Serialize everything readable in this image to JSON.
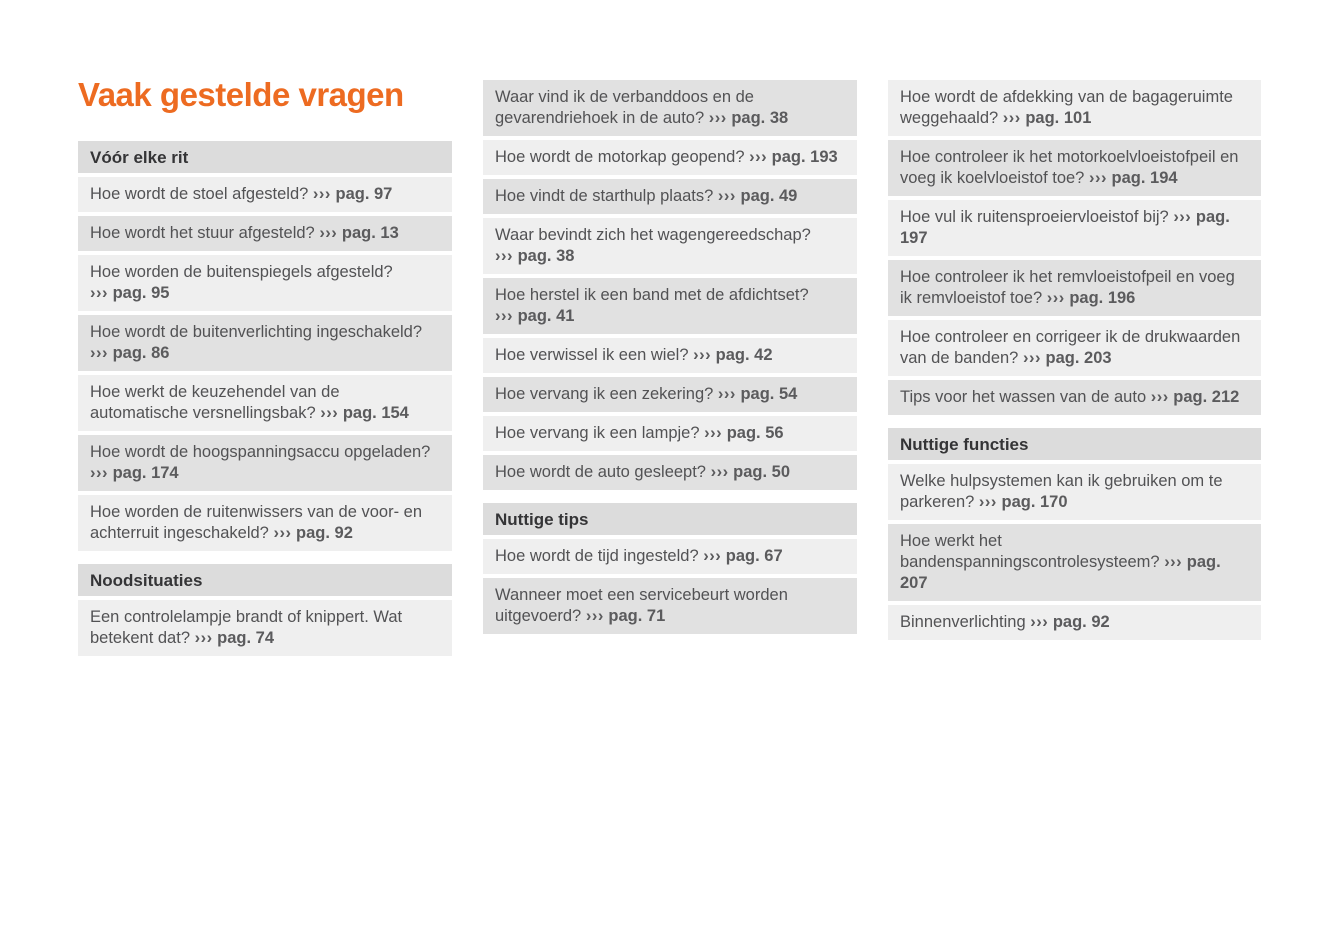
{
  "page_title": "Vaak gestelde vragen",
  "ref_arrow": "›››",
  "colors": {
    "accent_orange": "#ED6B21",
    "section_header_bg": "#DCDCDC",
    "row_light_bg": "#EFEFEF",
    "row_dark_bg": "#E1E1E1",
    "question_text": "#525254",
    "heading_text": "#343436",
    "ref_text": "#5B5B5D"
  },
  "columns": [
    {
      "sections": [
        {
          "heading": "Vóór elke rit",
          "items": [
            {
              "question": "Hoe wordt de stoel afgesteld?",
              "ref": "pag. 97",
              "shade": "light"
            },
            {
              "question": "Hoe wordt het stuur afgesteld?",
              "ref": "pag. 13",
              "shade": "dark"
            },
            {
              "question": "Hoe worden de buitenspiegels afgesteld?",
              "ref": "pag. 95",
              "shade": "light"
            },
            {
              "question": "Hoe wordt de buitenverlichting ingeschakeld?",
              "ref": "pag. 86",
              "shade": "dark"
            },
            {
              "question": "Hoe werkt de keuzehendel van de automatische versnellingsbak?",
              "ref": "pag. 154",
              "shade": "light"
            },
            {
              "question": "Hoe wordt de hoogspanningsaccu opgeladen?",
              "ref": "pag. 174",
              "shade": "dark"
            },
            {
              "question": "Hoe worden de ruitenwissers van de voor- en achterruit ingeschakeld?",
              "ref": "pag. 92",
              "shade": "light"
            }
          ]
        },
        {
          "heading": "Noodsituaties",
          "items": [
            {
              "question": "Een controlelampje brandt of knippert. Wat betekent dat?",
              "ref": "pag. 74",
              "shade": "light"
            }
          ]
        }
      ]
    },
    {
      "sections": [
        {
          "heading": null,
          "items": [
            {
              "question": "Waar vind ik de verbanddoos en de gevarendriehoek in de auto?",
              "ref": "pag. 38",
              "shade": "dark"
            },
            {
              "question": "Hoe wordt de motorkap geopend?",
              "ref": "pag. 193",
              "shade": "light"
            },
            {
              "question": "Hoe vindt de starthulp plaats?",
              "ref": "pag. 49",
              "shade": "dark"
            },
            {
              "question": "Waar bevindt zich het wagengereedschap?",
              "ref": "pag. 38",
              "shade": "light"
            },
            {
              "question": "Hoe herstel ik een band met de afdichtset?",
              "ref": "pag. 41",
              "shade": "dark"
            },
            {
              "question": "Hoe verwissel ik een wiel?",
              "ref": "pag. 42",
              "shade": "light"
            },
            {
              "question": "Hoe vervang ik een zekering?",
              "ref": "pag. 54",
              "shade": "dark"
            },
            {
              "question": "Hoe vervang ik een lampje?",
              "ref": "pag. 56",
              "shade": "light"
            },
            {
              "question": "Hoe wordt de auto gesleept?",
              "ref": "pag. 50",
              "shade": "dark"
            }
          ]
        },
        {
          "heading": "Nuttige tips",
          "items": [
            {
              "question": "Hoe wordt de tijd ingesteld?",
              "ref": "pag. 67",
              "shade": "light"
            },
            {
              "question": "Wanneer moet een servicebeurt worden uitgevoerd?",
              "ref": "pag. 71",
              "shade": "dark"
            }
          ]
        }
      ]
    },
    {
      "sections": [
        {
          "heading": null,
          "items": [
            {
              "question": "Hoe wordt de afdekking van de bagageruimte weggehaald?",
              "ref": "pag. 101",
              "shade": "light"
            },
            {
              "question": "Hoe controleer ik het motorkoelvloeistofpeil en voeg ik koelvloeistof toe?",
              "ref": "pag. 194",
              "shade": "dark"
            },
            {
              "question": "Hoe vul ik ruitensproeiervloeistof bij?",
              "ref": "pag. 197",
              "shade": "light"
            },
            {
              "question": "Hoe controleer ik het remvloeistofpeil en voeg ik remvloeistof toe?",
              "ref": "pag. 196",
              "shade": "dark"
            },
            {
              "question": "Hoe controleer en corrigeer ik de drukwaarden van de banden?",
              "ref": "pag. 203",
              "shade": "light"
            },
            {
              "question": "Tips voor het wassen van de auto",
              "ref": "pag. 212",
              "shade": "dark"
            }
          ]
        },
        {
          "heading": "Nuttige functies",
          "items": [
            {
              "question": "Welke hulpsystemen kan ik gebruiken om te parkeren?",
              "ref": "pag. 170",
              "shade": "light"
            },
            {
              "question": "Hoe werkt het bandenspanningscontrolesysteem?",
              "ref": "pag. 207",
              "shade": "dark"
            },
            {
              "question": "Binnenverlichting",
              "ref": "pag. 92",
              "shade": "light"
            }
          ]
        }
      ]
    }
  ]
}
